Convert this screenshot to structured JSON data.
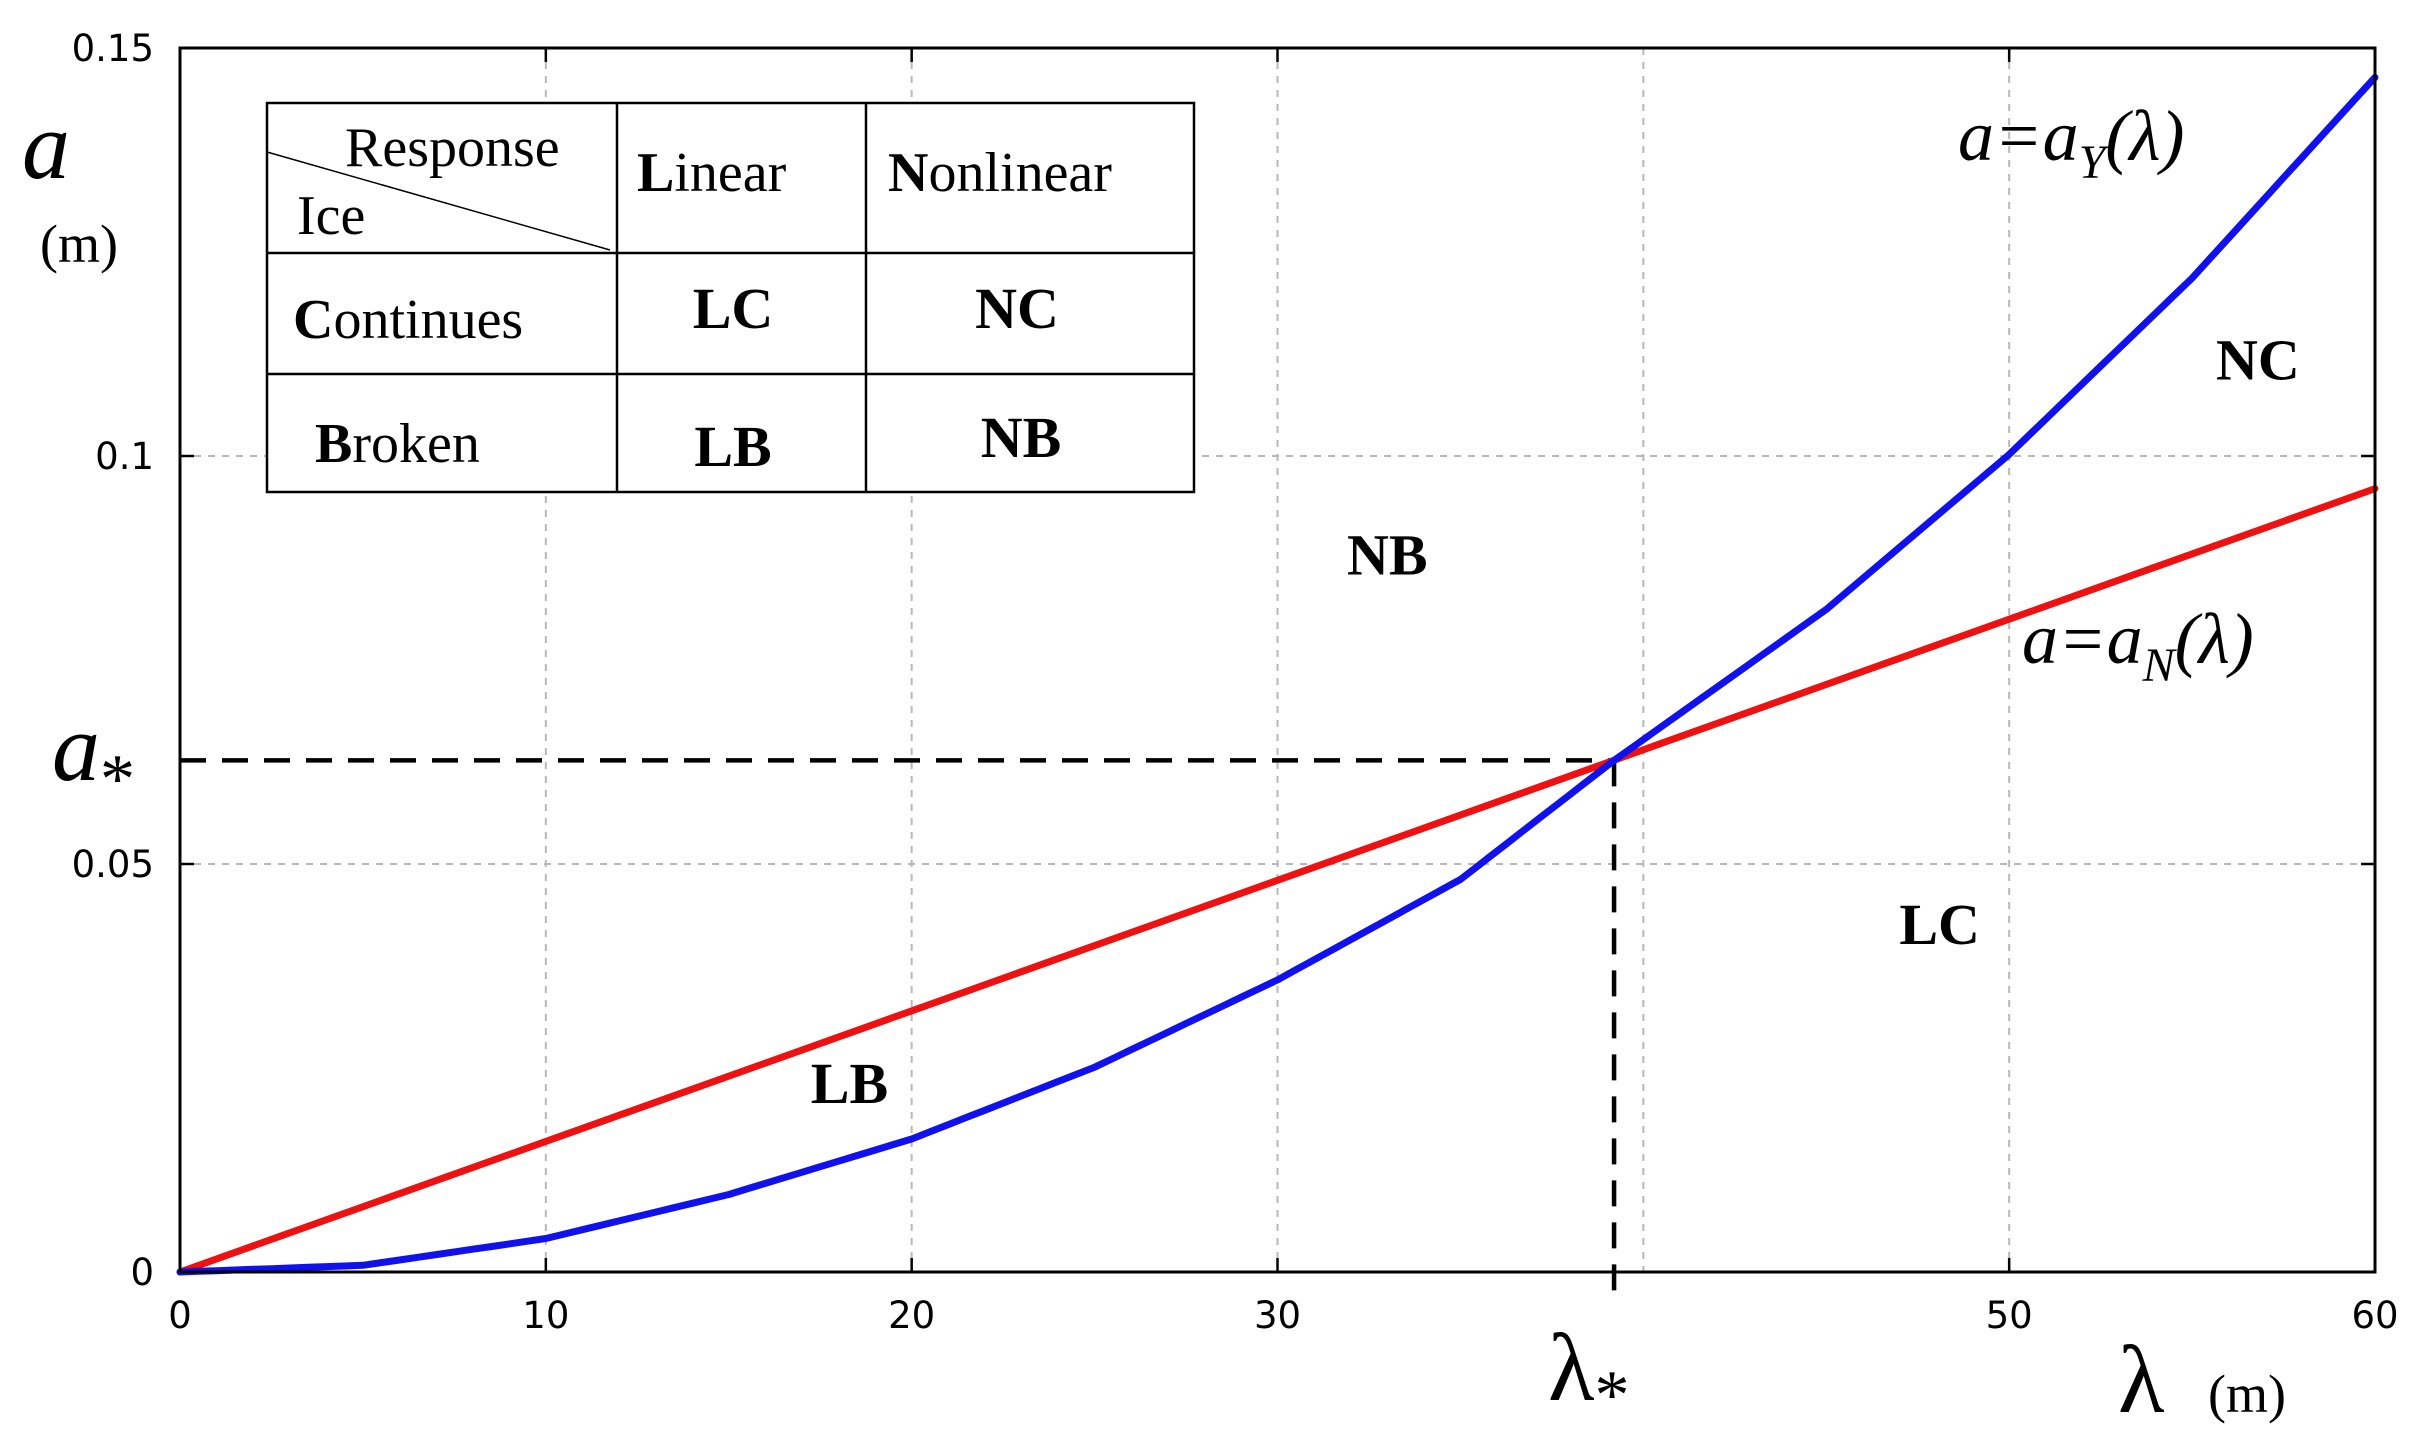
{
  "chart_data": {
    "type": "line",
    "xlim": [
      0,
      60
    ],
    "ylim": [
      0,
      0.15
    ],
    "x_ticks": [
      "0",
      "10",
      "20",
      "30",
      "50",
      "60"
    ],
    "y_ticks": [
      "0",
      "0.05",
      "0.1",
      "0.15"
    ],
    "grid": true,
    "xlabel": {
      "symbol": "λ",
      "unit": "(m)"
    },
    "ylabel": {
      "symbol": "a",
      "unit": "(m)"
    },
    "critical_point": {
      "x": 39.2,
      "y": 0.0627,
      "x_label": "λ",
      "x_sub": "*",
      "y_label": "a",
      "y_sub": "*"
    },
    "series": [
      {
        "label": {
          "lhs": "a=a",
          "sub": "N",
          "rhs": "(λ)"
        },
        "color": "#ee1111",
        "x": [
          0,
          60
        ],
        "y": [
          0,
          0.096
        ]
      },
      {
        "label": {
          "lhs": "a=a",
          "sub": "Y",
          "rhs": "(λ)"
        },
        "color": "#1111ee",
        "x": [
          0,
          5,
          10,
          15,
          20,
          25,
          30,
          35,
          39.2,
          45,
          50,
          55,
          60
        ],
        "y": [
          0,
          0.00082,
          0.0041,
          0.0095,
          0.0163,
          0.0251,
          0.0358,
          0.0481,
          0.0627,
          0.0812,
          0.1002,
          0.1218,
          0.1464
        ]
      }
    ],
    "regions": [
      {
        "label": "NB",
        "x": 33,
        "y": 0.0855
      },
      {
        "label": "NC",
        "x": 56.8,
        "y": 0.1094
      },
      {
        "label": "LC",
        "x": 48.1,
        "y": 0.0402
      },
      {
        "label": "LB",
        "x": 18.3,
        "y": 0.0207
      }
    ]
  },
  "legend_table": {
    "corner_top": "Response",
    "corner_bottom": "Ice",
    "columns": [
      {
        "initial": "L",
        "rest": "inear"
      },
      {
        "initial": "N",
        "rest": "onlinear"
      }
    ],
    "rows": [
      {
        "initial": "C",
        "rest": "ontinues",
        "cells": [
          "LC",
          "NC"
        ]
      },
      {
        "initial": "B",
        "rest": "roken",
        "cells": [
          "LB",
          "NB"
        ]
      }
    ]
  }
}
